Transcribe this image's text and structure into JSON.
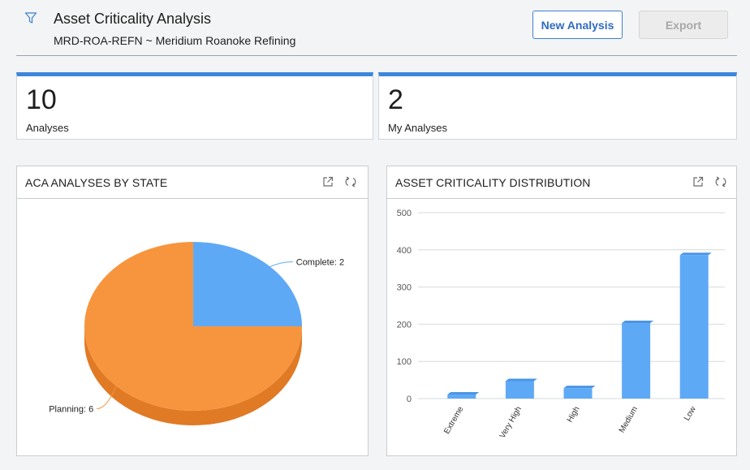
{
  "header": {
    "title": "Asset Criticality Analysis",
    "subtitle": "MRD-ROA-REFN ~ Meridium Roanoke Refining",
    "new_analysis_label": "New Analysis",
    "export_label": "Export"
  },
  "kpis": [
    {
      "value": "10",
      "label": "Analyses"
    },
    {
      "value": "2",
      "label": "My Analyses"
    }
  ],
  "panels": {
    "state": {
      "title": "ACA ANALYSES BY STATE"
    },
    "distribution": {
      "title": "ASSET CRITICALITY DISTRIBUTION"
    }
  },
  "colors": {
    "accent": "#3d86db",
    "complete": "#5ea9f6",
    "planning": "#f7953e",
    "bar": "#5ea9f6"
  },
  "chart_data": [
    {
      "type": "pie",
      "title": "ACA ANALYSES BY STATE",
      "slices": [
        {
          "label": "Complete",
          "value": 2,
          "label_text": "Complete: 2"
        },
        {
          "label": "Planning",
          "value": 6,
          "label_text": "Planning: 6"
        }
      ]
    },
    {
      "type": "bar",
      "title": "ASSET CRITICALITY DISTRIBUTION",
      "categories": [
        "Extreme",
        "Very High",
        "High",
        "Medium",
        "Low"
      ],
      "values": [
        8,
        47,
        28,
        203,
        386
      ],
      "ylim": [
        0,
        500
      ],
      "yticks": [
        0,
        100,
        200,
        300,
        400,
        500
      ],
      "grid": true
    }
  ]
}
